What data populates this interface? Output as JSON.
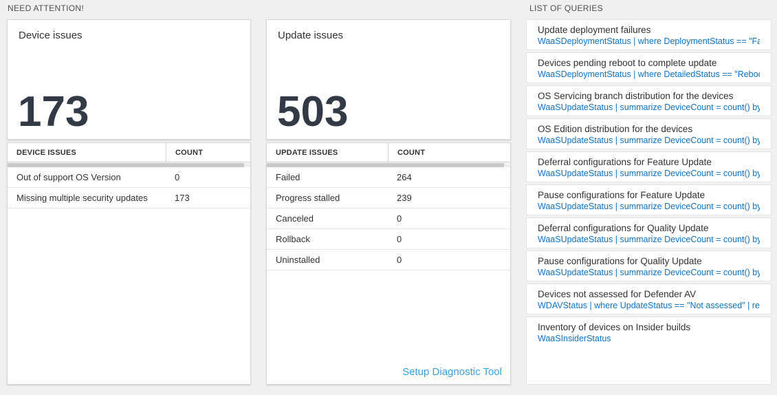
{
  "colors": {
    "page_background": "#f0f0f0",
    "query_code_blue": "#1273c2",
    "diagnostic_link_blue": "#3aa0da",
    "big_number_color": "#323a45",
    "scrollbar_thumb": "#c9c9c9"
  },
  "need_attention": {
    "section_title": "NEED ATTENTION!",
    "cards": [
      {
        "title": "Device issues",
        "big_number": "173",
        "table": {
          "columns": [
            "DEVICE ISSUES",
            "COUNT"
          ],
          "rows": [
            {
              "label": "Out of support OS Version",
              "count": "0"
            },
            {
              "label": "Missing multiple security updates",
              "count": "173"
            }
          ]
        }
      },
      {
        "title": "Update issues",
        "big_number": "503",
        "table": {
          "columns": [
            "UPDATE ISSUES",
            "COUNT"
          ],
          "rows": [
            {
              "label": "Failed",
              "count": "264"
            },
            {
              "label": "Progress stalled",
              "count": "239"
            },
            {
              "label": "Canceled",
              "count": "0"
            },
            {
              "label": "Rollback",
              "count": "0"
            },
            {
              "label": "Uninstalled",
              "count": "0"
            }
          ]
        },
        "footer_link": "Setup Diagnostic Tool"
      }
    ]
  },
  "queries": {
    "section_title": "LIST OF QUERIES",
    "items": [
      {
        "title": "Update deployment failures",
        "query": "WaaSDeploymentStatus | where DeploymentStatus == \"Failed\" |..."
      },
      {
        "title": "Devices pending reboot to complete update",
        "query": "WaaSDeploymentStatus | where DetailedStatus == \"Reboot pend..."
      },
      {
        "title": "OS Servicing branch distribution for the devices",
        "query": "WaaSUpdateStatus | summarize DeviceCount = count() by OSSer..."
      },
      {
        "title": "OS Edition distribution for the devices",
        "query": "WaaSUpdateStatus | summarize DeviceCount = count() by OSEdit..."
      },
      {
        "title": "Deferral configurations for Feature Update",
        "query": "WaaSUpdateStatus | summarize DeviceCount = count() by Featur..."
      },
      {
        "title": "Pause configurations for Feature Update",
        "query": "WaaSUpdateStatus | summarize DeviceCount = count() by Featur..."
      },
      {
        "title": "Deferral configurations for Quality Update",
        "query": "WaaSUpdateStatus | summarize DeviceCount = count() by Qualit..."
      },
      {
        "title": "Pause configurations for Quality Update",
        "query": "WaaSUpdateStatus | summarize DeviceCount = count() by Qualit..."
      },
      {
        "title": "Devices not assessed for Defender AV",
        "query": "WDAVStatus | where UpdateStatus == \"Not assessed\" | render ta..."
      },
      {
        "title": "Inventory of devices on Insider builds",
        "query": "WaaSInsiderStatus"
      }
    ]
  }
}
